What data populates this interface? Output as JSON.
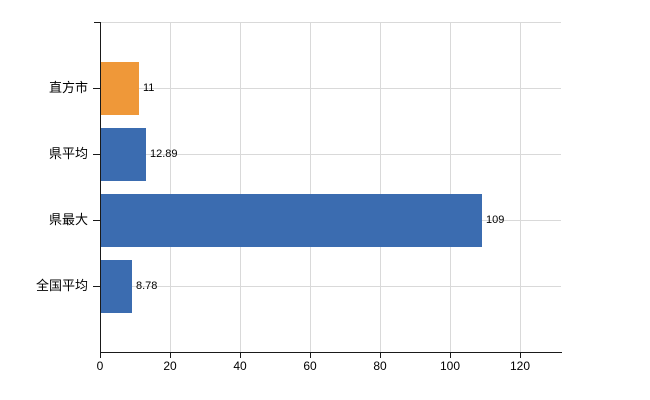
{
  "figure": {
    "background": "#ffffff"
  },
  "chart_data": {
    "type": "bar",
    "orientation": "horizontal",
    "title": "",
    "xlabel": "",
    "ylabel": "",
    "categories": [
      "直方市",
      "県平均",
      "県最大",
      "全国平均"
    ],
    "values": [
      11,
      12.89,
      109,
      8.78
    ],
    "value_labels": [
      "11",
      "12.89",
      "109",
      "8.78"
    ],
    "bar_colors": [
      "#ef9839",
      "#3b6cb0",
      "#3b6cb0",
      "#3b6cb0"
    ],
    "x_tick_values": [
      0,
      20,
      40,
      60,
      80,
      100,
      120
    ],
    "x_tick_labels": [
      "0",
      "20",
      "40",
      "60",
      "80",
      "100",
      "120"
    ],
    "xlim": [
      0,
      131.5
    ],
    "grid": "both",
    "legend": false,
    "colors": {
      "highlight_bar": "#ef9839",
      "default_bar": "#3b6cb0",
      "gridline": "#d9d9d9",
      "axis": "#1a1a1a",
      "text": "#000000"
    }
  }
}
